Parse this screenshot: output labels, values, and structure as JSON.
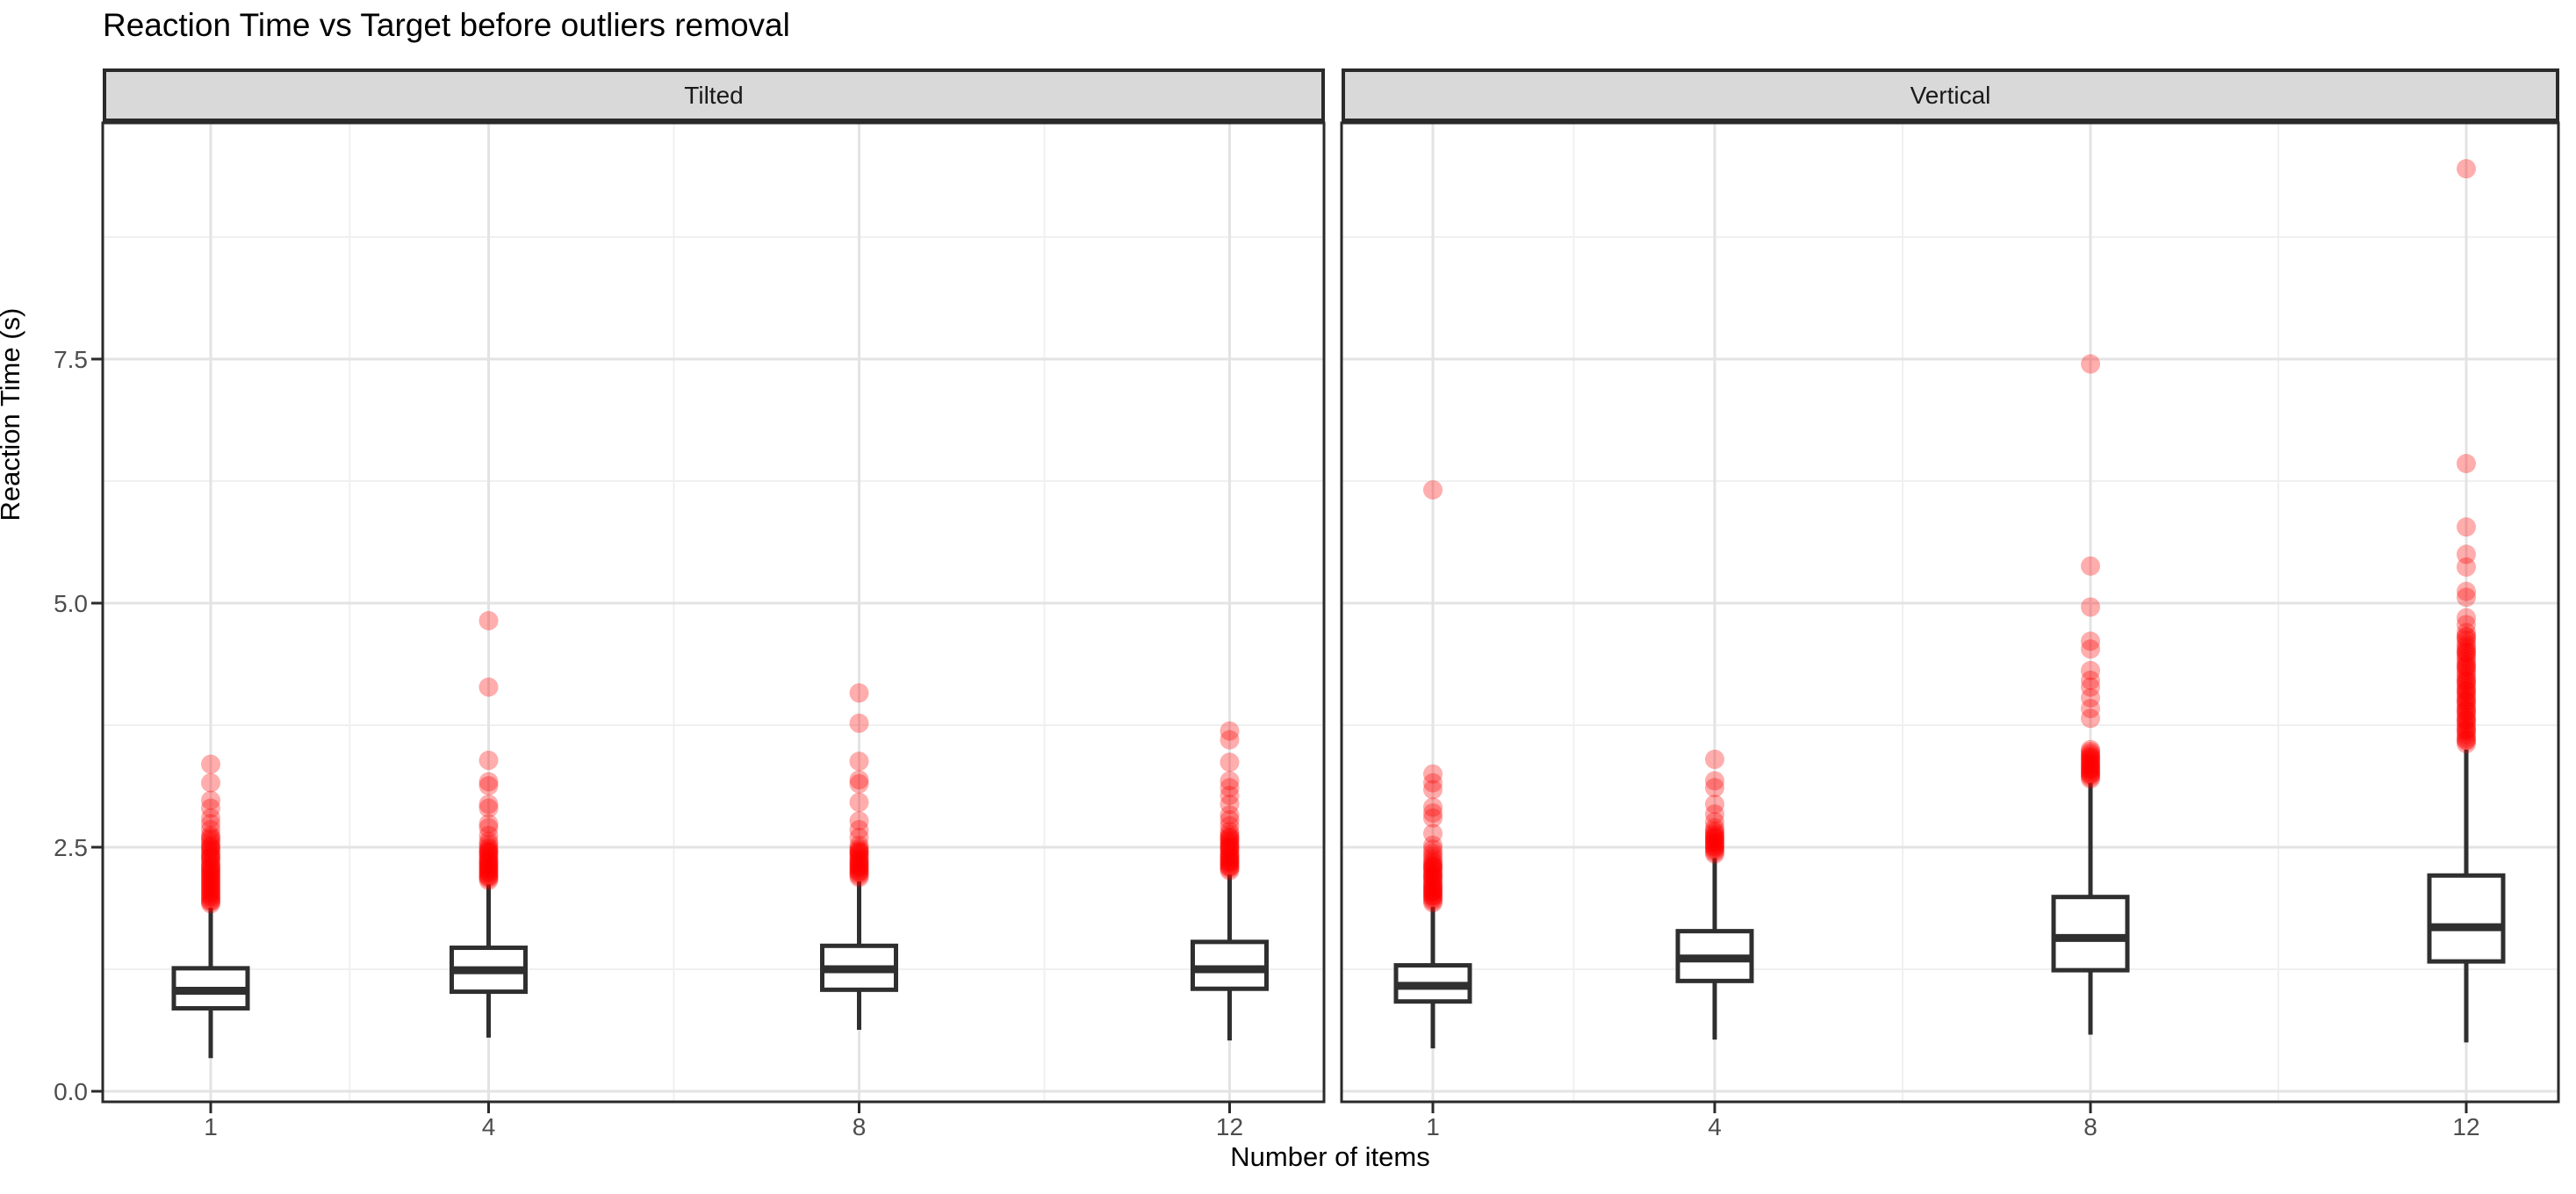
{
  "chart_data": {
    "type": "boxplot",
    "title": "Reaction Time vs Target before outliers removal",
    "xlabel": "Number of items",
    "ylabel": "Reaction Time (s)",
    "legend": "none",
    "grid": "on",
    "x_axis": {
      "breaks": [
        1,
        4,
        8,
        12
      ],
      "labels": [
        "1",
        "4",
        "8",
        "12"
      ],
      "minor_breaks": [
        2.5,
        6,
        10
      ],
      "scale": "continuous"
    },
    "y_axis": {
      "breaks": [
        0.0,
        2.5,
        5.0,
        7.5
      ],
      "labels": [
        "0.0",
        "2.5",
        "5.0",
        "7.5"
      ],
      "minor_breaks": [
        1.25,
        3.75,
        6.25,
        8.75
      ],
      "range": [
        -0.11,
        9.9
      ]
    },
    "style": {
      "outlier_color": "#FF0000",
      "outlier_opacity": 0.32,
      "outlier_radius": 11,
      "box_stroke": "#2f2f2f",
      "box_fill": "#ffffff",
      "grid_major_color": "#e3e3e3",
      "grid_minor_color": "#f0f0f0",
      "panel_border_color": "#2a2a2a",
      "strip_background": "#d9d9d9",
      "axis_text_color": "#4d4d4d"
    },
    "facets": [
      {
        "label": "Tilted",
        "groups": [
          {
            "x": 1,
            "whisker_low": 0.34,
            "q1": 0.85,
            "median": 1.03,
            "q3": 1.26,
            "whisker_high": 1.88,
            "outliers": [
              1.92,
              1.94,
              1.95,
              1.97,
              1.99,
              2.0,
              2.02,
              2.04,
              2.05,
              2.07,
              2.09,
              2.1,
              2.12,
              2.14,
              2.15,
              2.17,
              2.19,
              2.2,
              2.22,
              2.24,
              2.25,
              2.27,
              2.29,
              2.3,
              2.32,
              2.34,
              2.37,
              2.39,
              2.4,
              2.42,
              2.44,
              2.47,
              2.49,
              2.5,
              2.52,
              2.55,
              2.58,
              2.6,
              2.62,
              2.68,
              2.74,
              2.8,
              2.9,
              2.98,
              3.16,
              3.35
            ]
          },
          {
            "x": 4,
            "whisker_low": 0.55,
            "q1": 1.02,
            "median": 1.24,
            "q3": 1.47,
            "whisker_high": 2.12,
            "outliers": [
              2.16,
              2.18,
              2.2,
              2.2,
              2.22,
              2.24,
              2.25,
              2.26,
              2.28,
              2.3,
              2.3,
              2.32,
              2.34,
              2.35,
              2.36,
              2.38,
              2.4,
              2.42,
              2.44,
              2.45,
              2.46,
              2.48,
              2.5,
              2.53,
              2.56,
              2.62,
              2.7,
              2.74,
              2.9,
              2.94,
              3.13,
              3.17,
              3.39,
              4.14,
              4.82
            ]
          },
          {
            "x": 8,
            "whisker_low": 0.63,
            "q1": 1.04,
            "median": 1.25,
            "q3": 1.49,
            "whisker_high": 2.15,
            "outliers": [
              2.19,
              2.21,
              2.23,
              2.25,
              2.25,
              2.27,
              2.29,
              2.3,
              2.31,
              2.33,
              2.35,
              2.35,
              2.37,
              2.39,
              2.41,
              2.43,
              2.45,
              2.45,
              2.47,
              2.49,
              2.52,
              2.6,
              2.68,
              2.77,
              2.96,
              3.15,
              3.19,
              3.38,
              3.77,
              4.08
            ]
          },
          {
            "x": 12,
            "whisker_low": 0.52,
            "q1": 1.05,
            "median": 1.25,
            "q3": 1.53,
            "whisker_high": 2.22,
            "outliers": [
              2.26,
              2.28,
              2.3,
              2.3,
              2.32,
              2.34,
              2.35,
              2.36,
              2.38,
              2.4,
              2.4,
              2.42,
              2.44,
              2.46,
              2.48,
              2.5,
              2.5,
              2.52,
              2.54,
              2.56,
              2.58,
              2.6,
              2.6,
              2.63,
              2.66,
              2.72,
              2.78,
              2.83,
              2.94,
              3.03,
              3.11,
              3.18,
              3.37,
              3.6,
              3.69
            ]
          }
        ]
      },
      {
        "label": "Vertical",
        "groups": [
          {
            "x": 1,
            "whisker_low": 0.44,
            "q1": 0.92,
            "median": 1.08,
            "q3": 1.29,
            "whisker_high": 1.89,
            "outliers": [
              1.93,
              1.95,
              1.97,
              1.99,
              2.0,
              2.01,
              2.03,
              2.05,
              2.05,
              2.07,
              2.09,
              2.1,
              2.11,
              2.13,
              2.15,
              2.17,
              2.19,
              2.2,
              2.21,
              2.23,
              2.25,
              2.27,
              2.29,
              2.3,
              2.31,
              2.33,
              2.35,
              2.38,
              2.41,
              2.44,
              2.48,
              2.52,
              2.64,
              2.8,
              2.85,
              2.91,
              3.09,
              3.16,
              3.25,
              6.16
            ]
          },
          {
            "x": 4,
            "whisker_low": 0.53,
            "q1": 1.13,
            "median": 1.36,
            "q3": 1.64,
            "whisker_high": 2.39,
            "outliers": [
              2.43,
              2.45,
              2.47,
              2.49,
              2.5,
              2.51,
              2.53,
              2.55,
              2.55,
              2.57,
              2.59,
              2.6,
              2.61,
              2.63,
              2.65,
              2.67,
              2.7,
              2.76,
              2.84,
              2.94,
              3.11,
              3.18,
              3.4
            ]
          },
          {
            "x": 8,
            "whisker_low": 0.58,
            "q1": 1.24,
            "median": 1.57,
            "q3": 1.99,
            "whisker_high": 3.16,
            "outliers": [
              3.2,
              3.22,
              3.24,
              3.25,
              3.26,
              3.28,
              3.3,
              3.3,
              3.32,
              3.34,
              3.35,
              3.36,
              3.38,
              3.4,
              3.42,
              3.42,
              3.44,
              3.46,
              3.48,
              3.5,
              3.82,
              3.92,
              4.03,
              4.14,
              4.21,
              4.31,
              4.53,
              4.61,
              4.96,
              5.38,
              7.45
            ]
          },
          {
            "x": 12,
            "whisker_low": 0.5,
            "q1": 1.33,
            "median": 1.68,
            "q3": 2.21,
            "whisker_high": 3.5,
            "outliers": [
              3.56,
              3.59,
              3.6,
              3.62,
              3.65,
              3.68,
              3.7,
              3.71,
              3.74,
              3.77,
              3.8,
              3.8,
              3.83,
              3.86,
              3.89,
              3.9,
              3.92,
              3.95,
              3.98,
              4.0,
              4.01,
              4.04,
              4.07,
              4.1,
              4.1,
              4.13,
              4.16,
              4.19,
              4.2,
              4.22,
              4.25,
              4.28,
              4.31,
              4.34,
              4.35,
              4.37,
              4.4,
              4.43,
              4.46,
              4.49,
              4.5,
              4.52,
              4.55,
              4.58,
              4.62,
              4.65,
              4.66,
              4.7,
              4.78,
              4.85,
              5.06,
              5.12,
              5.37,
              5.5,
              5.78,
              6.43,
              9.45
            ]
          }
        ]
      }
    ]
  }
}
